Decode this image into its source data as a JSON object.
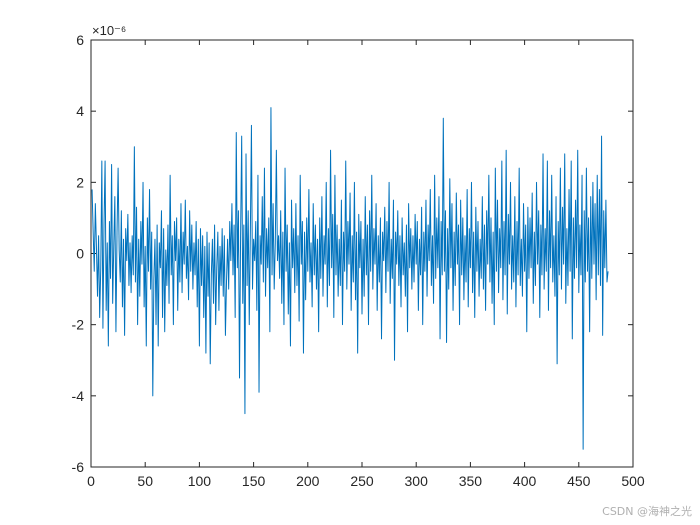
{
  "watermark": "CSDN @海神之光",
  "chart_data": {
    "type": "line",
    "title": "",
    "xlabel": "",
    "ylabel": "",
    "y_exponent_label": "×10⁻⁶",
    "xlim": [
      0,
      500
    ],
    "ylim": [
      -6e-06,
      6e-06
    ],
    "xticks": [
      0,
      50,
      100,
      150,
      200,
      250,
      300,
      350,
      400,
      450,
      500
    ],
    "xtick_labels": [
      "0",
      "50",
      "100",
      "150",
      "200",
      "250",
      "300",
      "350",
      "400",
      "450",
      "500"
    ],
    "yticks": [
      -6e-06,
      -4e-06,
      -2e-06,
      0,
      2e-06,
      4e-06,
      6e-06
    ],
    "ytick_labels": [
      "-6",
      "-4",
      "-2",
      "0",
      "2",
      "4",
      "6"
    ],
    "grid": false,
    "line_color": "#0072BD",
    "series": [
      {
        "x_start": 1,
        "x_step": 1,
        "values": [
          1.8e-06,
          6e-07,
          -5e-07,
          1.4e-06,
          2e-07,
          -1.2e-06,
          5e-07,
          -1.8e-06,
          -4e-07,
          2.6e-06,
          -2.1e-06,
          8e-07,
          2.6e-06,
          -1.6e-06,
          3e-07,
          -2.6e-06,
          9e-07,
          -7e-07,
          2.5e-06,
          -1.4e-06,
          2e-07,
          1.6e-06,
          -2.2e-06,
          6e-07,
          2.4e-06,
          1e-07,
          -8e-07,
          1.2e-06,
          -1.5e-06,
          4e-07,
          -2.3e-06,
          7e-07,
          -2e-07,
          1.1e-06,
          -9e-07,
          3e-07,
          -1.1e-06,
          5e-07,
          -6e-07,
          3e-06,
          -8e-07,
          1.3e-06,
          -2e-06,
          4e-07,
          -1.2e-06,
          9e-07,
          -3e-07,
          2e-06,
          -1.5e-06,
          2e-07,
          -2.6e-06,
          1e-06,
          -5e-07,
          1.8e-06,
          -1e-06,
          6e-07,
          -4e-06,
          -7e-07,
          4e-07,
          -2e-06,
          8e-07,
          -2.6e-06,
          3e-07,
          -4e-07,
          1.2e-06,
          -1.8e-06,
          7e-07,
          -2.2e-06,
          1e-07,
          -9e-07,
          8e-07,
          -1.4e-06,
          2.2e-06,
          -6e-07,
          5e-07,
          -2e-06,
          9e-07,
          -2e-07,
          1e-06,
          -1.6e-06,
          4e-07,
          -8e-07,
          1.4e-06,
          -1.1e-06,
          6e-07,
          -3e-07,
          1.5e-06,
          -7e-07,
          2e-07,
          -1.3e-06,
          1.2e-06,
          -5e-07,
          8e-07,
          -1e-06,
          3e-07,
          -6e-07,
          9e-07,
          -1.5e-06,
          4e-07,
          -2.6e-06,
          7e-07,
          -9e-07,
          5e-07,
          -1.8e-06,
          2e-07,
          -2.8e-06,
          6e-07,
          -1.2e-06,
          3e-07,
          -3.1e-06,
          -6e-07,
          4e-07,
          -1.4e-06,
          8e-07,
          -2e-06,
          -4e-07,
          6e-07,
          -1.6e-06,
          2e-07,
          -9e-07,
          7e-07,
          -1.2e-06,
          5e-07,
          -2.3e-06,
          -8e-07,
          4e-07,
          -1e-06,
          9e-07,
          -2e-07,
          1.4e-06,
          -6e-07,
          8e-07,
          -1.8e-06,
          3.4e-06,
          -4e-07,
          1.2e-06,
          -3.5e-06,
          5e-07,
          3.3e-06,
          -1.4e-06,
          8e-07,
          -4.5e-06,
          2.8e-06,
          -9e-07,
          1.2e-06,
          -2e-06,
          6e-07,
          3.6e-06,
          -1e-06,
          4e-07,
          -2e-07,
          9e-07,
          -1.6e-06,
          2.2e-06,
          -3.9e-06,
          5e-07,
          -3e-07,
          1.6e-06,
          -8e-07,
          2.4e-06,
          -1.2e-06,
          7e-07,
          -4e-07,
          1e-06,
          -2.2e-06,
          4.1e-06,
          -6e-07,
          1.4e-06,
          -1e-06,
          3e-07,
          2.9e-06,
          -2e-07,
          5e-07,
          -7e-07,
          1.2e-06,
          -1.4e-06,
          6e-07,
          -2e-06,
          2.4e-06,
          -5e-07,
          8e-07,
          -1.7e-06,
          3e-07,
          -2.6e-06,
          1.5e-06,
          -4e-07,
          7e-07,
          -1.1e-06,
          1.4e-06,
          -9e-07,
          5e-07,
          -1.9e-06,
          2.2e-06,
          -3e-07,
          9e-07,
          -2.8e-06,
          6e-07,
          -1.3e-06,
          1e-06,
          -5e-07,
          1.8e-06,
          -8e-07,
          3e-07,
          -1.5e-06,
          1.4e-06,
          -6e-07,
          8e-07,
          -1e-06,
          4e-07,
          -2.2e-06,
          1e-06,
          -7e-07,
          1.6e-06,
          -1.2e-06,
          5e-07,
          -3e-07,
          2e-06,
          -1.5e-06,
          7e-07,
          -9e-07,
          2.9e-06,
          -4e-07,
          1.1e-06,
          -1.8e-06,
          2.2e-06,
          -6e-07,
          8e-07,
          -1.2e-06,
          4e-07,
          -9e-07,
          1.5e-06,
          -2e-06,
          6e-07,
          -5e-07,
          2.6e-06,
          -1e-06,
          9e-07,
          -3e-07,
          1.7e-06,
          -1.6e-06,
          5e-07,
          -8e-07,
          2e-06,
          -1.3e-06,
          6e-07,
          -2.8e-06,
          1.1e-06,
          -4e-07,
          9e-07,
          -1.7e-06,
          4e-07,
          -1.2e-06,
          1.6e-06,
          -6e-07,
          8e-07,
          -2e-06,
          1.2e-06,
          -5e-07,
          2.2e-06,
          -1e-06,
          7e-07,
          -3e-07,
          1.4e-06,
          -1.6e-06,
          5e-07,
          -8e-07,
          1e-06,
          -2.4e-06,
          6e-07,
          -2e-07,
          1.3e-06,
          -1.1e-06,
          9e-07,
          -5e-07,
          2e-06,
          -1.4e-06,
          4e-07,
          -7e-07,
          1.5e-06,
          -3e-06,
          6e-07,
          -3e-07,
          1.2e-06,
          -9e-07,
          5e-07,
          -1.5e-06,
          1e-06,
          -6e-07,
          3e-07,
          -1.2e-06,
          8e-07,
          -2.2e-06,
          1.4e-06,
          -4e-07,
          7e-07,
          -1e-06,
          5e-07,
          -8e-07,
          1.1e-06,
          -3e-07,
          9e-07,
          -1.6e-06,
          4e-07,
          -6e-07,
          1.3e-06,
          -2e-06,
          6e-07,
          -5e-07,
          1.5e-06,
          -1.2e-06,
          8e-07,
          -2e-07,
          1.8e-06,
          -9e-07,
          5e-07,
          -1.4e-06,
          2.2e-06,
          -7e-07,
          1e-06,
          -4e-07,
          1.6e-06,
          -2.4e-06,
          9e-07,
          -6e-07,
          3.8e-06,
          -5e-07,
          1.2e-06,
          -2.5e-06,
          7e-07,
          -1e-06,
          2.1e-06,
          -4e-07,
          1.4e-06,
          -1.6e-06,
          6e-07,
          -9e-07,
          1.7e-06,
          -3e-07,
          8e-07,
          -2e-06,
          1.5e-06,
          -6e-07,
          1e-06,
          -1.3e-06,
          5e-07,
          -8e-07,
          1.8e-06,
          -1.5e-06,
          7e-07,
          -4e-07,
          2e-06,
          -1.1e-06,
          6e-07,
          -1.8e-06,
          1.3e-06,
          -5e-07,
          9e-07,
          -1.2e-06,
          4e-07,
          -7e-07,
          1.6e-06,
          -1e-06,
          8e-07,
          -1.6e-06,
          1.2e-06,
          -3e-07,
          2.2e-06,
          -8e-07,
          1e-06,
          -1.4e-06,
          6e-07,
          -2e-06,
          2.4e-06,
          -5e-07,
          1.5e-06,
          -1.1e-06,
          7e-07,
          -4e-07,
          2.6e-06,
          -1.3e-06,
          9e-07,
          -6e-07,
          2.9e-06,
          -1.7e-06,
          1.1e-06,
          -3e-07,
          2e-06,
          -1e-06,
          5e-07,
          -8e-07,
          1.6e-06,
          -1.5e-06,
          9e-07,
          -6e-07,
          2.4e-06,
          -9e-07,
          4e-07,
          -1.2e-06,
          1.4e-06,
          -5e-07,
          8e-07,
          -2.2e-06,
          1.3e-06,
          -7e-07,
          1e-06,
          -4e-07,
          1.7e-06,
          -1.4e-06,
          6e-07,
          -9e-07,
          2e-06,
          -3e-07,
          1.2e-06,
          -1.8e-06,
          8e-07,
          -6e-07,
          2.8e-06,
          -1e-06,
          7e-07,
          -5e-07,
          2.6e-06,
          -1.6e-06,
          1.2e-06,
          -4e-07,
          2.2e-06,
          -8e-07,
          5e-07,
          -1.2e-06,
          1.6e-06,
          -3.1e-06,
          9e-07,
          -6e-07,
          2.4e-06,
          -1e-06,
          1.3e-06,
          -3e-07,
          2.8e-06,
          -1.4e-06,
          7e-07,
          -9e-07,
          1.8e-06,
          -5e-07,
          2.6e-06,
          -2.4e-06,
          1e-06,
          -7e-07,
          1.5e-06,
          -4e-07,
          2.9e-06,
          -1.1e-06,
          8e-07,
          -6e-07,
          2.2e-06,
          -5.5e-06,
          1.2e-06,
          -8e-07,
          2.4e-06,
          -5e-07,
          1e-06,
          -2.2e-06,
          1.6e-06,
          -7e-07,
          2e-06,
          -3e-07,
          1.4e-06,
          -1.3e-06,
          2.2e-06,
          -6e-07,
          1.8e-06,
          -9e-07,
          3.3e-06,
          -2.3e-06,
          1.2e-06,
          -4e-07,
          1.5e-06,
          -8e-07,
          -5e-07
        ]
      }
    ]
  }
}
